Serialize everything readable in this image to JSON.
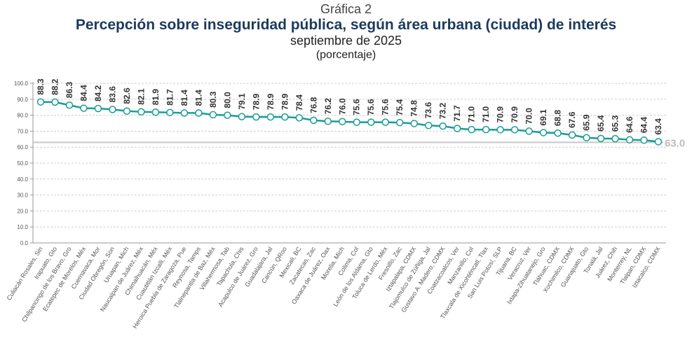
{
  "header": {
    "kicker": "Gráfica 2",
    "title": "Percepción sobre inseguridad pública, según área urbana (ciudad) de interés",
    "subtitle": "septiembre de 2025",
    "unit": "(porcentaje)"
  },
  "chart_data": {
    "type": "line",
    "title": "Percepción sobre inseguridad pública, según área urbana (ciudad) de interés",
    "ylim": [
      0,
      100
    ],
    "yticks": [
      "0.0",
      "10.0",
      "20.0",
      "30.0",
      "40.0",
      "50.0",
      "60.0",
      "70.0",
      "80.0",
      "90.0",
      "100.0"
    ],
    "grid": true,
    "line_color": "#1a9c94",
    "reference": {
      "value": 63.0,
      "label": "63.0",
      "color": "#c8c8c8"
    },
    "categories": [
      "Culiacán Rosales, Sin",
      "Irapuato, Gto",
      "Chilpancingo de los Bravo, Gro",
      "Ecatepec de Morelos, Méx",
      "Cuernavaca, Mor",
      "Ciudad Obregón, Son",
      "Uruapan, Mich",
      "Naucalpan de Juárez, Méx",
      "Chimalhuacán, Méx",
      "Cuautitlán Izcalli, Méx",
      "Heroica Puebla de Zaragoza, Pue",
      "Reynosa, Tamps",
      "Tlalnepantla de Baz, Méx",
      "Villahermosa, Tab",
      "Tapachula, Chis",
      "Acapulco de Juárez, Gro",
      "Guadalajara, Jal",
      "Cancún, QRoo",
      "Mexicali, BC",
      "Zacatecas, Zac",
      "Oaxaca de Juárez, Oax",
      "Morelia, Mich",
      "Colima, Col",
      "León de los Aldama, Gto",
      "Toluca de Lerdo, Méx",
      "Fresnillo, Zac",
      "Iztapalapa, CDMX",
      "Tlajomulco de Zúñiga, Jal",
      "Gustavo A. Madero, CDMX",
      "Coatzacoalcos, Ver",
      "Manzanillo, Col",
      "Tlaxcala de Xicohténcatl, Tlax",
      "San Luis Potosí, SLP",
      "Tijuana, BC",
      "Veracruz, Ver",
      "Ixtapa-Zihuatanejo, Gro",
      "Tláhuac, CDMX",
      "Xochimilco, CDMX",
      "Guanajuato, Gto",
      "Tonalá, Jal",
      "Juárez, Chih",
      "Monterrey, NL",
      "Tlalpan, CDMX",
      "Iztacalco, CDMX"
    ],
    "values": [
      88.3,
      88.2,
      86.3,
      84.4,
      84.2,
      83.6,
      82.6,
      82.1,
      81.9,
      81.7,
      81.4,
      81.4,
      80.3,
      80.0,
      79.1,
      78.9,
      78.9,
      78.9,
      78.4,
      76.8,
      76.2,
      76.0,
      75.6,
      75.6,
      75.6,
      75.4,
      74.8,
      73.6,
      73.2,
      71.7,
      71.0,
      71.0,
      70.9,
      70.9,
      70.0,
      69.1,
      68.8,
      67.6,
      65.9,
      65.4,
      65.3,
      64.6,
      64.4,
      63.4
    ]
  }
}
